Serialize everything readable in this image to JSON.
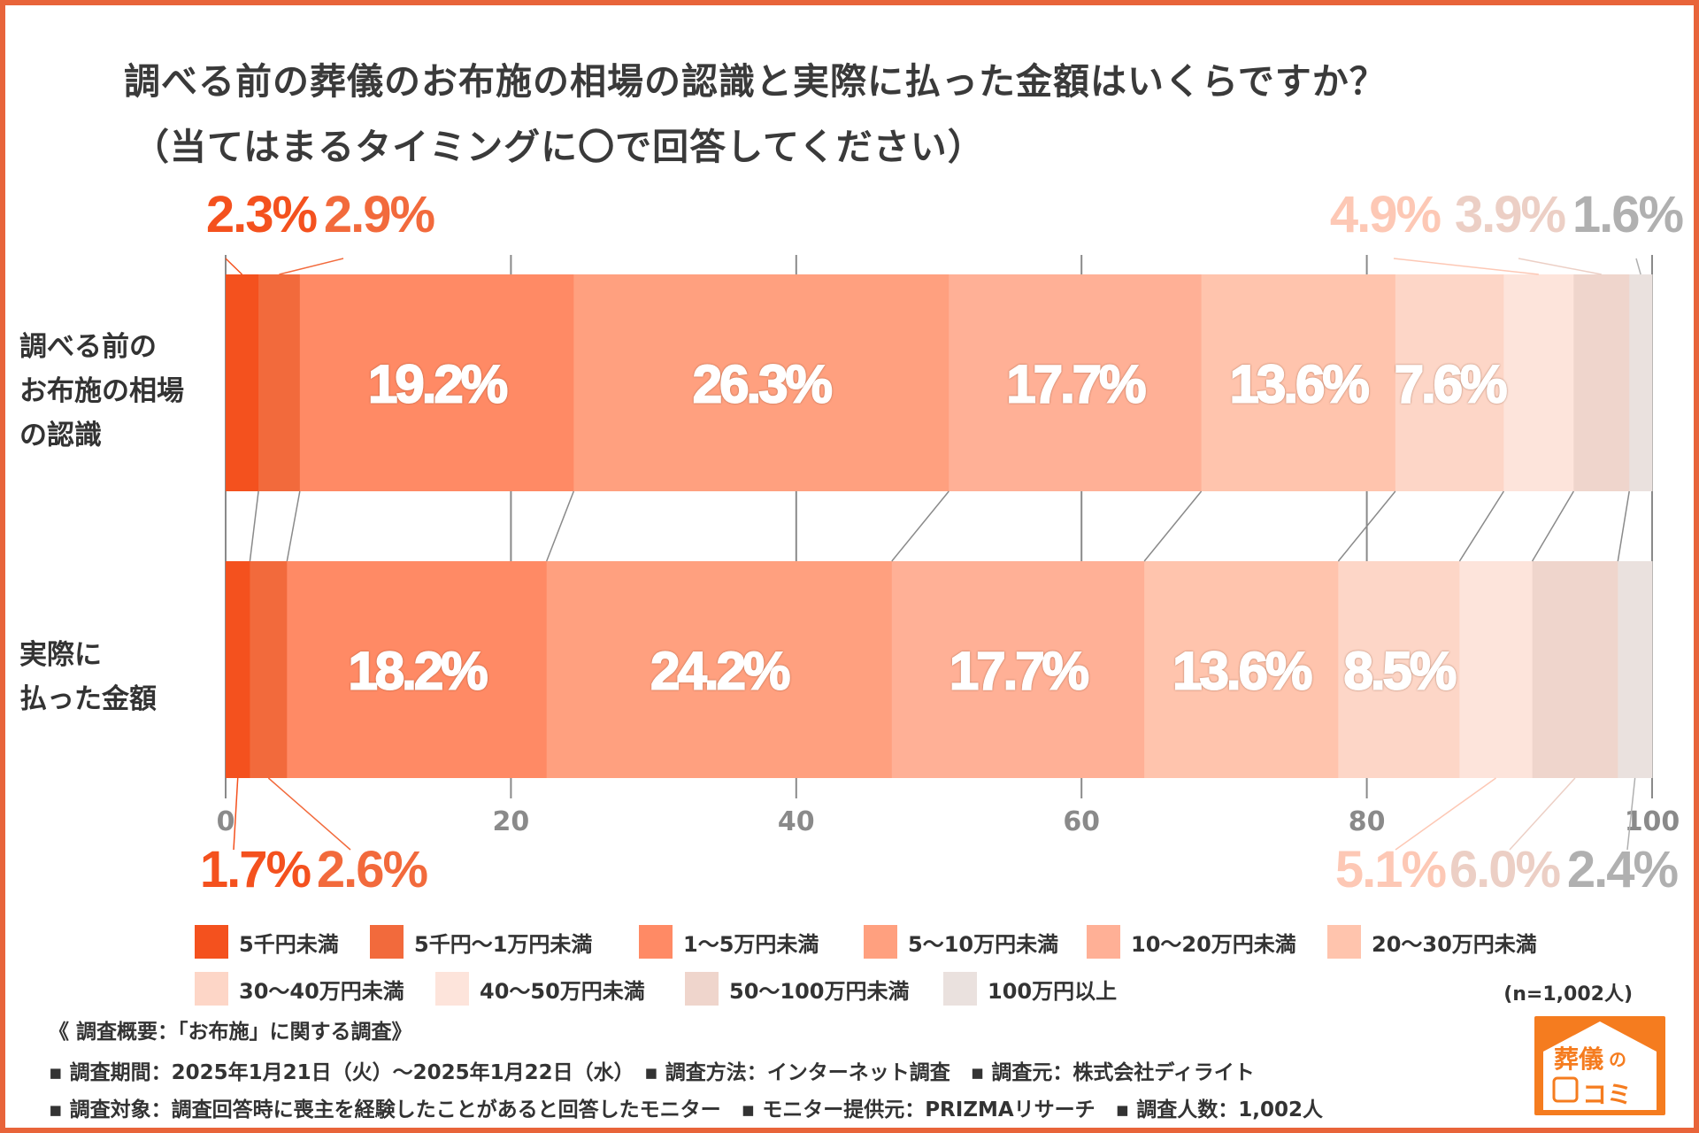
{
  "title_line1": "調べる前の葬儀のお布施の相場の認識と実際に払った金額はいくらですか？",
  "title_line2": "（当てはまるタイミングに〇で回答してください）",
  "sample_size": "(n=1,002人)",
  "footer": {
    "heading": "《 調査概要：「お布施」に関する調査》",
    "line1": "▪ 調査期間：2025年1月21日（火）～2025年1月22日（水）　▪ 調査方法：インターネット調査　▪ 調査元：株式会社ディライト",
    "line2": "▪ 調査対象：調査回答時に喪主を経験したことがあると回答したモニター　▪ モニター提供元：PRIZMAリサーチ　▪ 調査人数：1,002人"
  },
  "logo_text": "葬儀のコミ",
  "chart_data": {
    "type": "bar",
    "orientation": "horizontal-stacked-100",
    "categories": [
      "調べる前のお布施の相場の認識",
      "実際に払った金額"
    ],
    "category_lines": [
      [
        "調べる前の",
        "お布施の相場",
        "の認識"
      ],
      [
        "実際に",
        "払った金額"
      ]
    ],
    "x_ticks": [
      "0",
      "20",
      "40",
      "60",
      "80",
      "100"
    ],
    "xlim": [
      0,
      100
    ],
    "grid": true,
    "legend_position": "bottom",
    "series": [
      {
        "name": "5千円未満",
        "values": [
          2.3,
          1.7
        ],
        "color": "#F4511E"
      },
      {
        "name": "5千円～1万円未満",
        "values": [
          2.9,
          2.6
        ],
        "color": "#F26A3C"
      },
      {
        "name": "1～5万円未満",
        "values": [
          19.2,
          18.2
        ],
        "color": "#FF8A65"
      },
      {
        "name": "5～10万円未満",
        "values": [
          26.3,
          24.2
        ],
        "color": "#FFA07F"
      },
      {
        "name": "10～20万円未満",
        "values": [
          17.7,
          17.7
        ],
        "color": "#FFB096"
      },
      {
        "name": "20～30万円未満",
        "values": [
          13.6,
          13.6
        ],
        "color": "#FFC4AD"
      },
      {
        "name": "30～40万円未満",
        "values": [
          7.6,
          8.5
        ],
        "color": "#FDD6C7"
      },
      {
        "name": "40～50万円未満",
        "values": [
          4.9,
          5.1
        ],
        "color": "#FDE4DB"
      },
      {
        "name": "50～100万円未満",
        "values": [
          3.9,
          6.0
        ],
        "color": "#EFD5CC"
      },
      {
        "name": "100万円以上",
        "values": [
          1.6,
          2.4
        ],
        "color": "#EAE1DE"
      }
    ],
    "value_labels": [
      [
        "2.3%",
        "2.9%",
        "19.2%",
        "26.3%",
        "17.7%",
        "13.6%",
        "7.6%",
        "4.9%",
        "3.9%",
        "1.6%"
      ],
      [
        "1.7%",
        "2.6%",
        "18.2%",
        "24.2%",
        "17.7%",
        "13.6%",
        "8.5%",
        "5.1%",
        "6.0%",
        "2.4%"
      ]
    ],
    "outside_label_colors": [
      "#F4511E",
      "#F26A3C",
      "#FDC8B5",
      "#ECCFC5",
      "#B0B0B0"
    ]
  }
}
